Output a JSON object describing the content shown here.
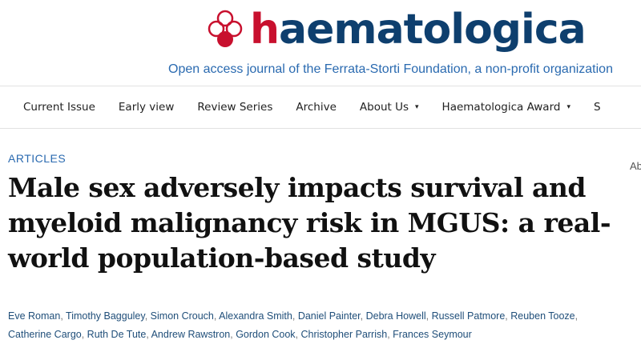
{
  "header": {
    "logo_text_h": "h",
    "logo_text_rest": "aematologica",
    "tagline": "Open access journal of the Ferrata-Storti Foundation, a non-profit organization",
    "colors": {
      "brand_red": "#c8102e",
      "brand_blue": "#0e3f6e"
    }
  },
  "nav": {
    "items": [
      {
        "label": "Current Issue"
      },
      {
        "label": "Early view"
      },
      {
        "label": "Review Series"
      },
      {
        "label": "Archive"
      },
      {
        "label": "About Us",
        "caret": "▾"
      },
      {
        "label": "Haematologica Award",
        "caret": "▾"
      },
      {
        "label": "S"
      }
    ]
  },
  "article": {
    "section": "ARTICLES",
    "title": "Male sex adversely impacts survival and myeloid malignancy risk in MGUS: a real-world population-based study",
    "side_text": "Ab",
    "authors": [
      "Eve Roman",
      "Timothy Bagguley",
      "Simon Crouch",
      "Alexandra Smith",
      "Daniel Painter",
      "Debra Howell",
      "Russell Patmore",
      "Reuben Tooze",
      "Catherine Cargo",
      "Ruth De Tute",
      "Andrew Rawstron",
      "Gordon Cook",
      "Christopher Parrish",
      "Frances Seymour"
    ]
  }
}
